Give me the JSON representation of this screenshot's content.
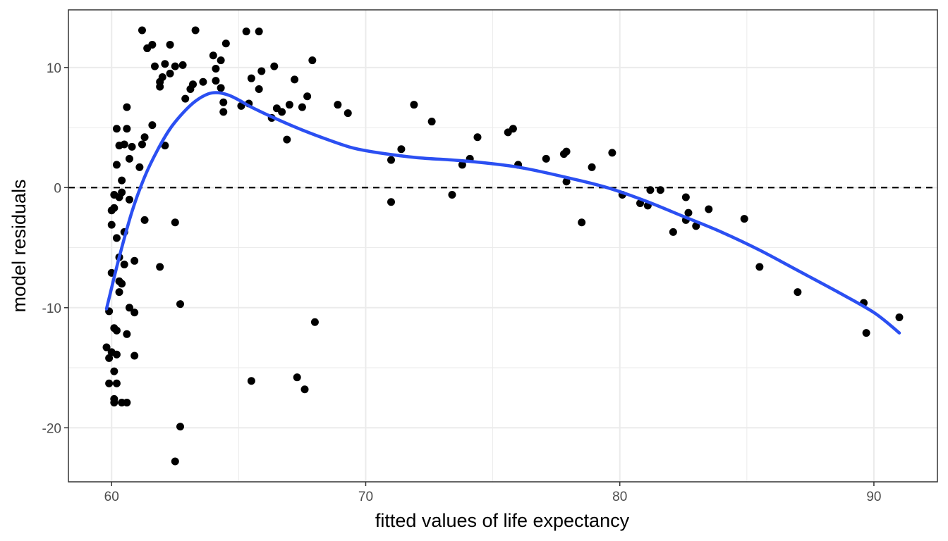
{
  "chart_data": {
    "type": "scatter",
    "xlabel": "fitted values of life expectancy",
    "ylabel": "model residuals",
    "xlim": [
      58.3,
      92.5
    ],
    "ylim": [
      -24.5,
      14.8
    ],
    "x_ticks": [
      60,
      70,
      80,
      90
    ],
    "y_ticks": [
      -20,
      -10,
      0,
      10
    ],
    "x_tick_labels": [
      "60",
      "70",
      "80",
      "90"
    ],
    "y_tick_labels": [
      "-20",
      "-10",
      "0",
      "10"
    ],
    "grid": true,
    "reference_line": {
      "y": 0,
      "style": "dashed"
    },
    "colors": {
      "points": "#000000",
      "smooth": "#2b4ff2",
      "grid": "#ebebeb",
      "panel_border": "#333333"
    },
    "points": [
      [
        61.2,
        13.1
      ],
      [
        63.3,
        13.1
      ],
      [
        65.3,
        13.0
      ],
      [
        65.8,
        13.0
      ],
      [
        61.6,
        11.9
      ],
      [
        61.4,
        11.6
      ],
      [
        62.3,
        11.9
      ],
      [
        64.5,
        12.0
      ],
      [
        64.0,
        11.0
      ],
      [
        64.3,
        10.6
      ],
      [
        67.9,
        10.6
      ],
      [
        61.7,
        10.1
      ],
      [
        62.1,
        10.3
      ],
      [
        62.5,
        10.1
      ],
      [
        62.8,
        10.2
      ],
      [
        64.1,
        9.9
      ],
      [
        65.9,
        9.7
      ],
      [
        66.4,
        10.1
      ],
      [
        61.9,
        8.8
      ],
      [
        62.0,
        9.2
      ],
      [
        62.3,
        9.5
      ],
      [
        63.2,
        8.6
      ],
      [
        63.6,
        8.8
      ],
      [
        63.1,
        8.2
      ],
      [
        61.9,
        8.4
      ],
      [
        64.1,
        8.9
      ],
      [
        64.3,
        8.3
      ],
      [
        65.5,
        9.1
      ],
      [
        65.8,
        8.2
      ],
      [
        67.2,
        9.0
      ],
      [
        67.7,
        7.6
      ],
      [
        62.9,
        7.4
      ],
      [
        64.4,
        7.1
      ],
      [
        65.1,
        6.8
      ],
      [
        65.4,
        7.0
      ],
      [
        64.4,
        6.3
      ],
      [
        66.5,
        6.6
      ],
      [
        66.7,
        6.3
      ],
      [
        66.3,
        5.8
      ],
      [
        67.0,
        6.9
      ],
      [
        67.5,
        6.7
      ],
      [
        68.9,
        6.9
      ],
      [
        69.3,
        6.2
      ],
      [
        60.6,
        6.7
      ],
      [
        61.6,
        5.2
      ],
      [
        60.2,
        4.9
      ],
      [
        60.6,
        4.9
      ],
      [
        61.3,
        4.2
      ],
      [
        60.3,
        3.5
      ],
      [
        60.5,
        3.6
      ],
      [
        60.8,
        3.4
      ],
      [
        61.2,
        3.6
      ],
      [
        62.1,
        3.5
      ],
      [
        60.7,
        2.4
      ],
      [
        60.2,
        1.9
      ],
      [
        61.1,
        1.7
      ],
      [
        60.4,
        0.6
      ],
      [
        60.1,
        -0.6
      ],
      [
        60.4,
        -0.4
      ],
      [
        60.3,
        -0.8
      ],
      [
        60.7,
        -1.0
      ],
      [
        60.1,
        -1.7
      ],
      [
        60.0,
        -1.9
      ],
      [
        61.3,
        -2.7
      ],
      [
        60.0,
        -3.1
      ],
      [
        62.5,
        -2.9
      ],
      [
        60.5,
        -3.7
      ],
      [
        60.2,
        -4.2
      ],
      [
        60.3,
        -5.8
      ],
      [
        60.5,
        -6.4
      ],
      [
        60.9,
        -6.1
      ],
      [
        61.9,
        -6.6
      ],
      [
        60.0,
        -7.1
      ],
      [
        60.3,
        -7.8
      ],
      [
        60.4,
        -8.0
      ],
      [
        60.3,
        -8.7
      ],
      [
        60.7,
        -10.0
      ],
      [
        60.9,
        -10.4
      ],
      [
        62.7,
        -9.7
      ],
      [
        59.9,
        -10.3
      ],
      [
        60.1,
        -11.7
      ],
      [
        60.2,
        -11.9
      ],
      [
        60.6,
        -12.2
      ],
      [
        59.8,
        -13.3
      ],
      [
        60.0,
        -13.7
      ],
      [
        60.2,
        -13.9
      ],
      [
        59.9,
        -14.2
      ],
      [
        60.9,
        -14.0
      ],
      [
        60.1,
        -15.3
      ],
      [
        59.9,
        -16.3
      ],
      [
        60.2,
        -16.3
      ],
      [
        60.1,
        -17.6
      ],
      [
        60.1,
        -17.9
      ],
      [
        60.4,
        -17.9
      ],
      [
        60.6,
        -17.9
      ],
      [
        62.7,
        -19.9
      ],
      [
        62.5,
        -22.8
      ],
      [
        65.5,
        -16.1
      ],
      [
        67.3,
        -15.8
      ],
      [
        67.6,
        -16.8
      ],
      [
        68.0,
        -11.2
      ],
      [
        66.9,
        4.0
      ],
      [
        71.0,
        2.3
      ],
      [
        71.4,
        3.2
      ],
      [
        71.0,
        -1.2
      ],
      [
        71.9,
        6.9
      ],
      [
        72.6,
        5.5
      ],
      [
        73.4,
        -0.6
      ],
      [
        73.8,
        1.9
      ],
      [
        74.1,
        2.4
      ],
      [
        74.4,
        4.2
      ],
      [
        75.6,
        4.6
      ],
      [
        75.8,
        4.9
      ],
      [
        76.0,
        1.9
      ],
      [
        77.1,
        2.4
      ],
      [
        77.8,
        2.8
      ],
      [
        77.9,
        3.0
      ],
      [
        77.9,
        0.5
      ],
      [
        78.5,
        -2.9
      ],
      [
        78.9,
        1.7
      ],
      [
        79.7,
        2.9
      ],
      [
        80.1,
        -0.6
      ],
      [
        80.8,
        -1.3
      ],
      [
        81.1,
        -1.5
      ],
      [
        81.2,
        -0.2
      ],
      [
        81.6,
        -0.2
      ],
      [
        82.1,
        -3.7
      ],
      [
        82.6,
        -0.8
      ],
      [
        82.7,
        -2.1
      ],
      [
        82.6,
        -2.7
      ],
      [
        83.0,
        -3.2
      ],
      [
        83.5,
        -1.8
      ],
      [
        84.9,
        -2.6
      ],
      [
        85.5,
        -6.6
      ],
      [
        87.0,
        -8.7
      ],
      [
        89.6,
        -9.6
      ],
      [
        89.7,
        -12.1
      ],
      [
        91.0,
        -10.8
      ]
    ],
    "smooth_curve": [
      [
        59.8,
        -10.1
      ],
      [
        60.3,
        -5.8
      ],
      [
        60.8,
        -2.0
      ],
      [
        61.3,
        0.9
      ],
      [
        61.8,
        3.1
      ],
      [
        62.3,
        4.9
      ],
      [
        62.8,
        6.2
      ],
      [
        63.3,
        7.2
      ],
      [
        63.8,
        7.8
      ],
      [
        64.2,
        7.9
      ],
      [
        64.6,
        7.7
      ],
      [
        65.0,
        7.3
      ],
      [
        65.5,
        6.7
      ],
      [
        66.5,
        5.7
      ],
      [
        67.5,
        4.8
      ],
      [
        68.5,
        4.0
      ],
      [
        69.5,
        3.3
      ],
      [
        70.5,
        2.9
      ],
      [
        72.0,
        2.5
      ],
      [
        74.0,
        2.2
      ],
      [
        76.0,
        1.7
      ],
      [
        78.0,
        0.8
      ],
      [
        79.5,
        0.0
      ],
      [
        81.0,
        -1.1
      ],
      [
        82.5,
        -2.4
      ],
      [
        84.0,
        -3.7
      ],
      [
        85.5,
        -5.2
      ],
      [
        87.0,
        -6.9
      ],
      [
        88.5,
        -8.6
      ],
      [
        90.0,
        -10.4
      ],
      [
        91.0,
        -12.1
      ]
    ]
  }
}
